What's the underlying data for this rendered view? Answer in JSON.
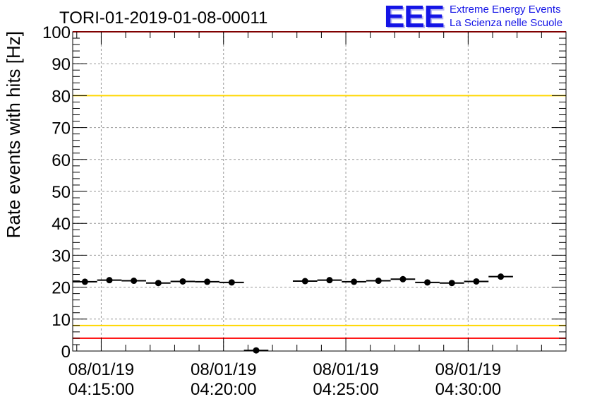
{
  "logo": {
    "mark": "EEE",
    "line1": "Extreme Energy Events",
    "line2": "La Scienza nelle Scuole"
  },
  "chart_data": {
    "type": "scatter",
    "title": "TORI-01-2019-01-08-00011",
    "xlabel": "",
    "ylabel": "Rate events with hits [Hz]",
    "x_unit": "time",
    "xlim": [
      "08/01/19 04:13:50",
      "08/01/19 04:34:00"
    ],
    "ylim": [
      0,
      100
    ],
    "grid": true,
    "y_ticks": [
      0,
      10,
      20,
      30,
      40,
      50,
      60,
      70,
      80,
      90,
      100
    ],
    "x_ticks": [
      {
        "time": "08/01/19 04:15:00",
        "date": "08/01/19",
        "clock": "04:15:00"
      },
      {
        "time": "08/01/19 04:20:00",
        "date": "08/01/19",
        "clock": "04:20:00"
      },
      {
        "time": "08/01/19 04:25:00",
        "date": "08/01/19",
        "clock": "04:25:00"
      },
      {
        "time": "08/01/19 04:30:00",
        "date": "08/01/19",
        "clock": "04:30:00"
      }
    ],
    "bin_width_seconds": 60,
    "series": [
      {
        "color": "#000000",
        "points": [
          {
            "x": "08/01/19 04:14:20",
            "y": 21.7
          },
          {
            "x": "08/01/19 04:15:20",
            "y": 22.2
          },
          {
            "x": "08/01/19 04:16:20",
            "y": 22.0
          },
          {
            "x": "08/01/19 04:17:20",
            "y": 21.3
          },
          {
            "x": "08/01/19 04:18:20",
            "y": 21.8
          },
          {
            "x": "08/01/19 04:19:20",
            "y": 21.7
          },
          {
            "x": "08/01/19 04:20:20",
            "y": 21.5
          },
          {
            "x": "08/01/19 04:21:20",
            "y": 0.2
          },
          {
            "x": "08/01/19 04:23:20",
            "y": 21.9
          },
          {
            "x": "08/01/19 04:24:20",
            "y": 22.2
          },
          {
            "x": "08/01/19 04:25:20",
            "y": 21.7
          },
          {
            "x": "08/01/19 04:26:20",
            "y": 22.0
          },
          {
            "x": "08/01/19 04:27:20",
            "y": 22.5
          },
          {
            "x": "08/01/19 04:28:20",
            "y": 21.5
          },
          {
            "x": "08/01/19 04:29:20",
            "y": 21.3
          },
          {
            "x": "08/01/19 04:30:20",
            "y": 21.8
          },
          {
            "x": "08/01/19 04:31:20",
            "y": 23.3
          }
        ]
      }
    ],
    "reference_lines": [
      {
        "y": 100,
        "color": "#ff0000"
      },
      {
        "y": 80,
        "color": "#ffd700"
      },
      {
        "y": 8,
        "color": "#ffd700"
      },
      {
        "y": 4,
        "color": "#ff0000"
      }
    ]
  }
}
